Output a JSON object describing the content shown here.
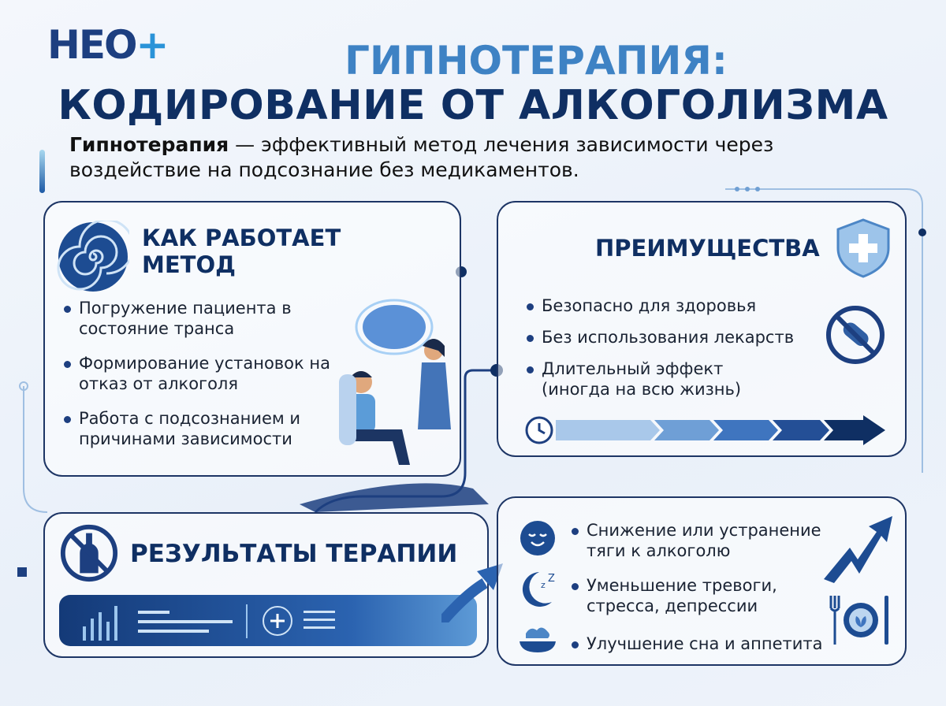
{
  "logo": {
    "text_main": "НЕО",
    "text_plus": "+"
  },
  "title": {
    "line1": "ГИПНОТЕРАПИЯ:",
    "line2": "КОДИРОВАНИЕ ОТ АЛКОГОЛИЗМА"
  },
  "intro": {
    "bold": "Гипнотерапия",
    "rest": " — эффективный метод лечения зависимости через воздействие на подсознание без медикаментов."
  },
  "how": {
    "heading": "КАК РАБОТАЕТ МЕТОД",
    "icon": "spiral-icon",
    "items": [
      "Погружение пациента в состояние транса",
      "Формирование установок на отказ от алкоголя",
      "Работа с подсознанием и причинами зависимости"
    ]
  },
  "benefits": {
    "heading": "ПРЕИМУЩЕСТВА",
    "icon": "shield-plus-icon",
    "items": [
      "Безопасно для здоровья",
      "Без использования лекарств",
      "Длительный эффект (иногда на всю жизнь)"
    ]
  },
  "results": {
    "heading": "РЕЗУЛЬТАТЫ ТЕРАПИИ",
    "icon": "no-alcohol-icon",
    "items": [
      "Снижение или устранение тяги к алкоголю",
      "Уменьшение тревоги, стресса, депрессии",
      "Улучшение сна и аппетита"
    ]
  },
  "colors": {
    "navy": "#0f2f63",
    "accent": "#3e82c4",
    "light": "#2a93d8"
  }
}
